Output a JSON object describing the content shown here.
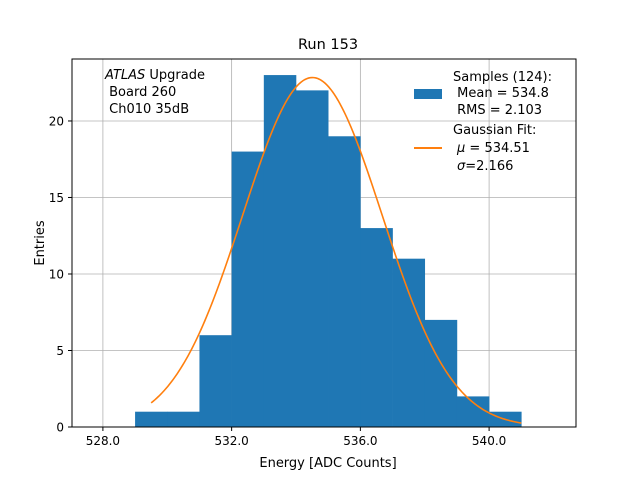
{
  "chart_data": {
    "type": "bar",
    "title": "Run 153",
    "xlabel": "Energy [ADC Counts]",
    "ylabel": "Entries",
    "xlim": [
      527.04,
      542.7
    ],
    "ylim": [
      0,
      24.05
    ],
    "xticks": [
      528,
      532,
      536,
      540
    ],
    "xtick_labels": [
      "528.0",
      "532.0",
      "536.0",
      "540.0"
    ],
    "yticks": [
      0,
      5,
      10,
      15,
      20
    ],
    "ytick_labels": [
      "0",
      "5",
      "10",
      "15",
      "20"
    ],
    "grid": true,
    "bin_edges": [
      529,
      530,
      531,
      532,
      533,
      534,
      535,
      536,
      537,
      538,
      539,
      540,
      541
    ],
    "values": [
      1,
      1,
      6,
      18,
      23,
      22,
      19,
      13,
      11,
      7,
      2,
      1
    ],
    "fit": {
      "type": "gaussian",
      "mu": 534.51,
      "sigma": 2.166,
      "amplitude": 22.84,
      "x_range": [
        529.5,
        541
      ]
    },
    "colors": {
      "bars": "#1f77b4",
      "fit": "#ff7f0e",
      "grid": "#b0b0b0"
    },
    "annotation": {
      "experiment": "ATLAS",
      "suffix": " Upgrade",
      "line2": " Board 260",
      "line3": " Ch010 35dB"
    },
    "legend": {
      "placement": "top-right",
      "samples": {
        "line1": "Samples (124):",
        "line2": " Mean = 534.8",
        "line3": " RMS = 2.103"
      },
      "fit": {
        "line1": "Gaussian Fit:",
        "line2_sym": "μ",
        "line2": " = 534.51",
        "line3_sym": "σ",
        "line3": "=2.166"
      }
    }
  }
}
